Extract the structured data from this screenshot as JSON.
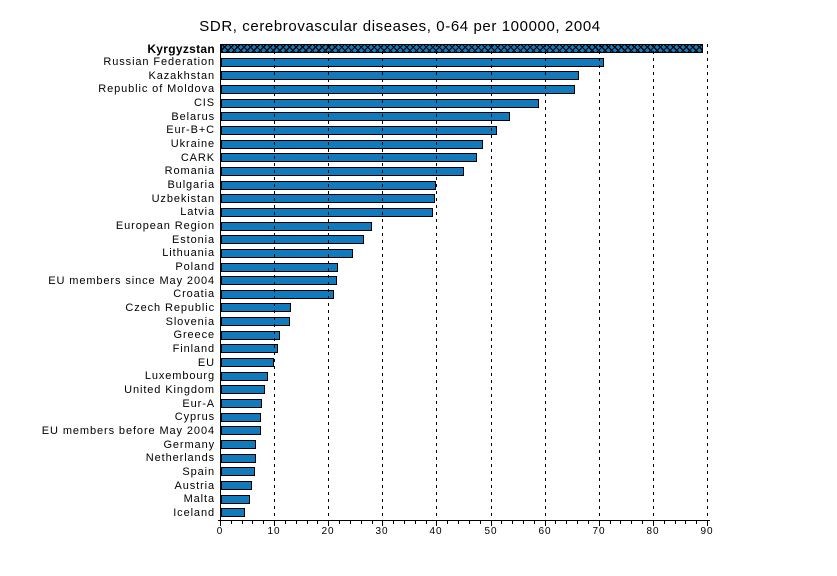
{
  "title": "SDR, cerebrovascular diseases, 0-64 per 100000, 2004",
  "colors": {
    "background": "#FFFFFF",
    "bar_fill": "#117ABD",
    "bar_border": "#000000",
    "axis": "#000000",
    "text": "#000000",
    "gridline": "#000000"
  },
  "chart_data": {
    "type": "bar",
    "orientation": "horizontal",
    "title": "SDR, cerebrovascular diseases, 0-64 per 100000, 2004",
    "xlabel": "",
    "ylabel": "",
    "xlim": [
      0,
      90
    ],
    "x_major_ticks": [
      0,
      10,
      20,
      30,
      40,
      50,
      60,
      70,
      80,
      90
    ],
    "x_minor_tick_step": 2,
    "grid": "vertical-dashed",
    "legend": "none",
    "highlight_category": "Kyrgyzstan",
    "highlight_style": "black-crosshatch",
    "categories": [
      "Kyrgyzstan",
      "Russian Federation",
      "Kazakhstan",
      "Republic of Moldova",
      "CIS",
      "Belarus",
      "Eur-B+C",
      "Ukraine",
      "CARK",
      "Romania",
      "Bulgaria",
      "Uzbekistan",
      "Latvia",
      "European Region",
      "Estonia",
      "Lithuania",
      "Poland",
      "EU members since May 2004",
      "Croatia",
      "Czech Republic",
      "Slovenia",
      "Greece",
      "Finland",
      "EU",
      "Luxembourg",
      "United Kingdom",
      "Eur-A",
      "Cyprus",
      "EU members before May 2004",
      "Germany",
      "Netherlands",
      "Spain",
      "Austria",
      "Malta",
      "Iceland"
    ],
    "values": [
      89.0,
      70.8,
      66.2,
      65.4,
      58.8,
      53.4,
      51.0,
      48.4,
      47.3,
      44.9,
      39.7,
      39.6,
      39.2,
      27.9,
      26.4,
      24.4,
      21.6,
      21.4,
      20.9,
      12.9,
      12.8,
      10.9,
      10.5,
      9.8,
      8.7,
      8.1,
      7.5,
      7.4,
      7.3,
      6.5,
      6.4,
      6.2,
      5.8,
      5.4,
      4.4
    ]
  }
}
